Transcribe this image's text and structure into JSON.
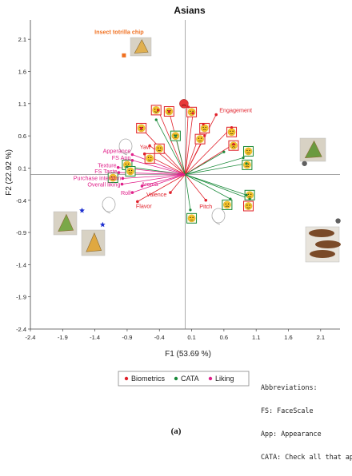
{
  "chart_data": {
    "type": "scatter",
    "title": "Asians",
    "xlabel": "F1 (53.69 %)",
    "ylabel": "F2 (22.92 %)",
    "xlim": [
      -2.4,
      2.4
    ],
    "ylim": [
      -2.4,
      2.4
    ],
    "xticks": [
      "-2.4",
      "-1.9",
      "-1.4",
      "-0.9",
      "-0.4",
      "0.1",
      "0.6",
      "1.1",
      "1.6",
      "2.1"
    ],
    "yticks": [
      "2.1",
      "1.6",
      "1.1",
      "0.6",
      "0.1",
      "-0.4",
      "-0.9",
      "-1.4",
      "-1.9",
      "-2.4"
    ],
    "grid": false,
    "legend_position": "bottom",
    "legend": [
      {
        "name": "Biometrics",
        "color": "#e0202a"
      },
      {
        "name": "CATA",
        "color": "#1a8a3a"
      },
      {
        "name": "Liking",
        "color": "#e0208a"
      }
    ],
    "samples": [
      {
        "label": "Insect totrilla chip",
        "x": -0.95,
        "y": 1.85,
        "color": "#f07020",
        "marker": "square"
      },
      {
        "label": "",
        "x": 1.85,
        "y": 0.17,
        "color": "#606060",
        "marker": "circle"
      },
      {
        "label": "",
        "x": 2.37,
        "y": -0.72,
        "color": "#606060",
        "marker": "circle"
      },
      {
        "label": "",
        "x": -1.6,
        "y": -0.56,
        "color": "#1e30d0",
        "marker": "star"
      },
      {
        "label": "",
        "x": -1.28,
        "y": -0.78,
        "color": "#1e30d0",
        "marker": "star"
      }
    ],
    "biometrics": [
      {
        "label": "Engagement",
        "x": 0.48,
        "y": 0.93
      },
      {
        "label": "Yaw",
        "x": -0.63,
        "y": 0.32
      },
      {
        "label": "Valence",
        "x": -0.23,
        "y": -0.28
      },
      {
        "label": "Pitch",
        "x": 0.32,
        "y": -0.4
      },
      {
        "label": "Flavor",
        "x": -0.74,
        "y": -0.42
      }
    ],
    "liking": [
      {
        "label": "Apperance",
        "x": -0.82,
        "y": 0.31
      },
      {
        "label": "FS App",
        "x": -0.82,
        "y": 0.22
      },
      {
        "label": "Texture",
        "x": -1.04,
        "y": 0.11
      },
      {
        "label": "FS Taste",
        "x": -1.03,
        "y": 0.03
      },
      {
        "label": "Purchase intention",
        "x": -0.97,
        "y": -0.06
      },
      {
        "label": "Overall liking",
        "x": -0.98,
        "y": -0.15
      },
      {
        "label": "Aroma",
        "x": -0.67,
        "y": -0.18
      },
      {
        "label": "Roll",
        "x": -0.82,
        "y": -0.28
      }
    ],
    "cata_points": [
      {
        "x": -0.45,
        "y": 0.85
      },
      {
        "x": -0.15,
        "y": 0.6
      },
      {
        "x": -0.9,
        "y": 0.12
      },
      {
        "x": 0.6,
        "y": 0.35
      },
      {
        "x": 0.9,
        "y": 0.26
      },
      {
        "x": 0.95,
        "y": 0.17
      },
      {
        "x": 0.7,
        "y": -0.38
      },
      {
        "x": 0.95,
        "y": -0.32
      },
      {
        "x": 1.0,
        "y": -0.38
      },
      {
        "x": 0.08,
        "y": -0.55
      }
    ],
    "red_lines": [
      {
        "x": -0.42,
        "y": 1.0
      },
      {
        "x": -0.25,
        "y": 0.98
      },
      {
        "x": 0.05,
        "y": 1.05
      },
      {
        "x": 0.12,
        "y": 0.95
      },
      {
        "x": 0.28,
        "y": 0.78
      },
      {
        "x": 0.72,
        "y": 0.73
      },
      {
        "x": 0.3,
        "y": 0.6
      },
      {
        "x": 0.75,
        "y": 0.47
      },
      {
        "x": -0.68,
        "y": 0.72
      },
      {
        "x": -0.55,
        "y": 0.45
      }
    ],
    "emoji_positions": [
      {
        "x": -0.45,
        "y": 1.0,
        "border": "#e0202a"
      },
      {
        "x": -0.25,
        "y": 0.98,
        "border": "#e0202a"
      },
      {
        "x": 0.1,
        "y": 0.97,
        "border": "#e0202a"
      },
      {
        "x": -0.68,
        "y": 0.72,
        "border": "#e0202a"
      },
      {
        "x": -0.15,
        "y": 0.6,
        "border": "#1a8a3a"
      },
      {
        "x": 0.3,
        "y": 0.72,
        "border": "#e0202a"
      },
      {
        "x": 0.72,
        "y": 0.66,
        "border": "#e0202a"
      },
      {
        "x": 0.23,
        "y": 0.55,
        "border": "#e0202a"
      },
      {
        "x": 0.75,
        "y": 0.45,
        "border": "#e0202a"
      },
      {
        "x": -0.4,
        "y": 0.4,
        "border": "#e0202a"
      },
      {
        "x": 0.98,
        "y": 0.36,
        "border": "#1a8a3a"
      },
      {
        "x": 0.96,
        "y": 0.15,
        "border": "#1a8a3a"
      },
      {
        "x": -0.55,
        "y": 0.25,
        "border": "#e0202a"
      },
      {
        "x": -1.12,
        "y": -0.05,
        "border": "#1a8a3a"
      },
      {
        "x": -0.9,
        "y": 0.15,
        "border": "#1a8a3a"
      },
      {
        "x": -0.85,
        "y": 0.05,
        "border": "#1a8a3a"
      },
      {
        "x": 1.0,
        "y": -0.32,
        "border": "#1a8a3a"
      },
      {
        "x": 0.65,
        "y": -0.47,
        "border": "#1a8a3a"
      },
      {
        "x": 0.98,
        "y": -0.49,
        "border": "#e0202a"
      },
      {
        "x": 0.1,
        "y": -0.68,
        "border": "#1a8a3a"
      }
    ],
    "abbreviations": [
      "Abbreviations:",
      "FS: FaceScale",
      "App: Appearance",
      "CATA: Check all that apply"
    ],
    "panel_label": "(a)"
  }
}
